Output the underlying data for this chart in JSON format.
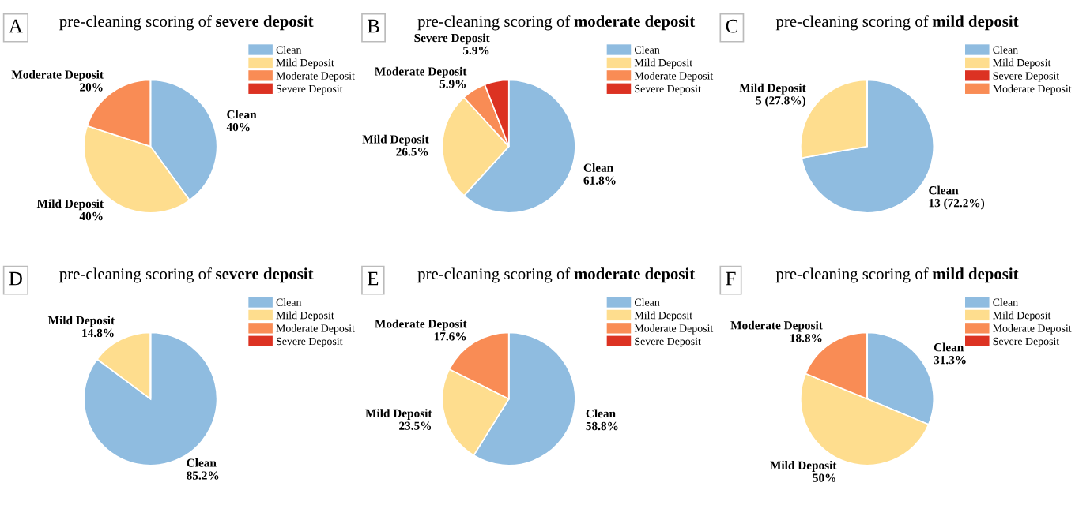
{
  "chart_data": [
    {
      "type": "pie",
      "title": "pre-cleaning scoring of severe deposit",
      "annotations": [
        "A"
      ],
      "categories": [
        "Clean",
        "Mild Deposit",
        "Moderate Deposit",
        "Severe Deposit"
      ],
      "values": [
        40,
        40,
        20,
        0
      ],
      "value_labels": [
        "40%",
        "40%",
        "20%",
        null
      ],
      "colors": [
        "#8fbce0",
        "#fedd8e",
        "#f98c55",
        "#dc3222"
      ],
      "legend": "top right"
    },
    {
      "type": "pie",
      "title": "pre-cleaning scoring of moderate deposit",
      "annotations": [
        "B"
      ],
      "categories": [
        "Clean",
        "Mild Deposit",
        "Moderate Deposit",
        "Severe Deposit"
      ],
      "values": [
        61.8,
        26.5,
        5.9,
        5.9
      ],
      "value_labels": [
        "61.8%",
        "26.5%",
        "5.9%",
        "5.9%"
      ],
      "colors": [
        "#8fbce0",
        "#fedd8e",
        "#f98c55",
        "#dc3222"
      ],
      "legend": "top right"
    },
    {
      "type": "pie",
      "title": "pre-cleaning scoring of mild deposit",
      "annotations": [
        "C"
      ],
      "categories": [
        "Clean",
        "Mild Deposit",
        "Severe Deposit",
        "Moderate Deposit"
      ],
      "values": [
        13,
        5,
        0,
        0
      ],
      "value_labels": [
        "13 (72.2%)",
        "5 (27.8%)",
        null,
        null
      ],
      "colors": [
        "#8fbce0",
        "#fedd8e",
        "#dc3222",
        "#f98c55"
      ],
      "legend": "top right"
    },
    {
      "type": "pie",
      "title": "pre-cleaning scoring of severe deposit",
      "annotations": [
        "D"
      ],
      "categories": [
        "Clean",
        "Mild Deposit",
        "Moderate Deposit",
        "Severe Deposit"
      ],
      "values": [
        85.2,
        14.8,
        0,
        0
      ],
      "value_labels": [
        "85.2%",
        "14.8%",
        null,
        null
      ],
      "colors": [
        "#8fbce0",
        "#fedd8e",
        "#f98c55",
        "#dc3222"
      ],
      "legend": "top right"
    },
    {
      "type": "pie",
      "title": "pre-cleaning scoring of moderate deposit",
      "annotations": [
        "E"
      ],
      "categories": [
        "Clean",
        "Mild Deposit",
        "Moderate Deposit",
        "Severe Deposit"
      ],
      "values": [
        58.8,
        23.5,
        17.6,
        0
      ],
      "value_labels": [
        "58.8%",
        "23.5%",
        "17.6%",
        null
      ],
      "colors": [
        "#8fbce0",
        "#fedd8e",
        "#f98c55",
        "#dc3222"
      ],
      "legend": "top right"
    },
    {
      "type": "pie",
      "title": "pre-cleaning scoring of mild deposit",
      "annotations": [
        "F"
      ],
      "categories": [
        "Clean",
        "Mild Deposit",
        "Moderate Deposit",
        "Severe Deposit"
      ],
      "values": [
        31.3,
        50,
        18.8,
        0
      ],
      "value_labels": [
        "31.3%",
        "50%",
        "18.8%",
        null
      ],
      "colors": [
        "#8fbce0",
        "#fedd8e",
        "#f98c55",
        "#dc3222"
      ],
      "legend": "top right"
    }
  ]
}
